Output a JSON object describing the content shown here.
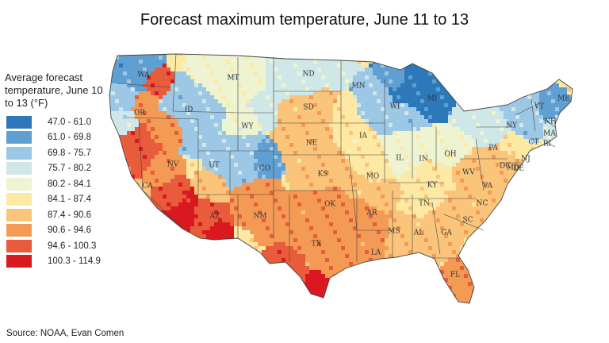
{
  "title": "Forecast maximum temperature, June 11 to 13",
  "legend": {
    "title": "Average forecast temperature, June 10 to 13 (°F)",
    "items": [
      {
        "range": "47.0 - 61.0",
        "color": "#2c78b8"
      },
      {
        "range": "61.0 - 69.8",
        "color": "#5f9fd2"
      },
      {
        "range": "69.8 - 75.7",
        "color": "#9cc8e6"
      },
      {
        "range": "75.7 - 80.2",
        "color": "#cfe7e6"
      },
      {
        "range": "80.2 - 84.1",
        "color": "#eef3d2"
      },
      {
        "range": "84.1 - 87.4",
        "color": "#fde9a4"
      },
      {
        "range": "87.4 - 90.6",
        "color": "#fac57a"
      },
      {
        "range": "90.6 - 94.6",
        "color": "#f39a55"
      },
      {
        "range": "94.6 - 100.3",
        "color": "#e85c3c"
      },
      {
        "range": "100.3 - 114.9",
        "color": "#d9181f"
      }
    ]
  },
  "source": "Source: NOAA, Evan Comen",
  "states": [
    "WA",
    "OR",
    "CA",
    "ID",
    "NV",
    "MT",
    "WY",
    "UT",
    "AZ",
    "CO",
    "NM",
    "ND",
    "SD",
    "NE",
    "KS",
    "OK",
    "TX",
    "MN",
    "IA",
    "MO",
    "AR",
    "LA",
    "WI",
    "IL",
    "MS",
    "MI",
    "IN",
    "KY",
    "TN",
    "AL",
    "OH",
    "WV",
    "GA",
    "FL",
    "SC",
    "NC",
    "VA",
    "PA",
    "NY",
    "VT",
    "NH",
    "ME",
    "MA",
    "CT",
    "RI",
    "NJ",
    "DE",
    "DC",
    "MD"
  ]
}
